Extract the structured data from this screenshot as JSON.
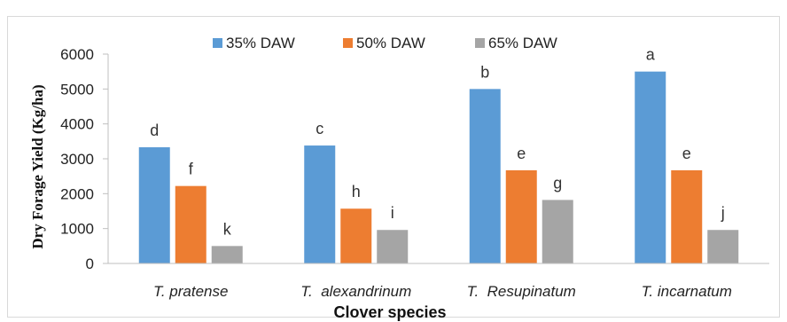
{
  "chart_data": {
    "type": "bar",
    "categories": [
      "T. pratense",
      "T.  alexandrinum",
      "T.  Resupinatum",
      "T. incarnatum"
    ],
    "series": [
      {
        "name": "35% DAW",
        "color": "#5b9bd5",
        "values": [
          3330,
          3380,
          5000,
          5500
        ],
        "labels": [
          "d",
          "c",
          "b",
          "a"
        ]
      },
      {
        "name": "50% DAW",
        "color": "#ed7d31",
        "values": [
          2220,
          1570,
          2670,
          2670
        ],
        "labels": [
          "f",
          "h",
          "e",
          "e"
        ]
      },
      {
        "name": "65% DAW",
        "color": "#a5a5a5",
        "values": [
          500,
          960,
          1820,
          960
        ],
        "labels": [
          "k",
          "i",
          "g",
          "j"
        ]
      }
    ],
    "xlabel": "Clover species",
    "ylabel": "Dry Forage Yield (Kg/ha)",
    "ylim": [
      0,
      6000
    ],
    "yticks": [
      0,
      1000,
      2000,
      3000,
      4000,
      5000,
      6000
    ],
    "grid": false,
    "legend_position": "top"
  }
}
